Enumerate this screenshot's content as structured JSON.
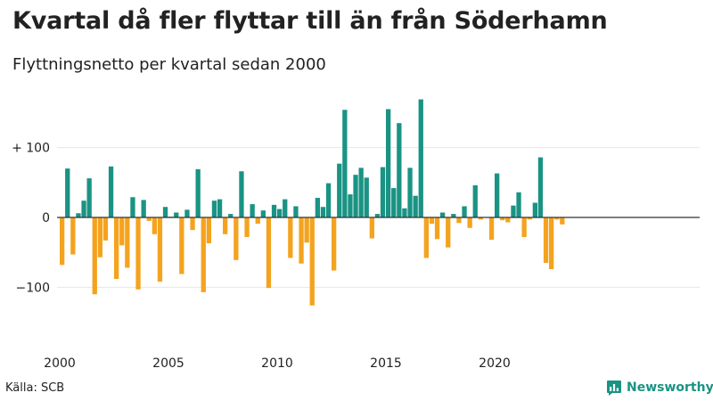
{
  "header": {
    "title": "Kvartal då fler flyttar till än från Söderhamn",
    "subtitle": "Flyttningsnetto per kvartal sedan 2000"
  },
  "footer": {
    "source": "Källa: SCB",
    "brand": "Newsworthy"
  },
  "colors": {
    "positive": "#1a9384",
    "negative": "#f4a31f",
    "grid": "#e6e6e6",
    "zero_line": "#333333"
  },
  "chart_data": {
    "type": "bar",
    "start_quarter": "2000K1",
    "y_ticks": [
      {
        "value": 100,
        "label": "+ 100"
      },
      {
        "value": 0,
        "label": "0"
      },
      {
        "value": -100,
        "label": "−100"
      }
    ],
    "x_ticks": [
      {
        "year": 2000,
        "label": "2000"
      },
      {
        "year": 2005,
        "label": "2005"
      },
      {
        "year": 2010,
        "label": "2010"
      },
      {
        "year": 2015,
        "label": "2015"
      },
      {
        "year": 2020,
        "label": "2020"
      }
    ],
    "ylim": [
      -160,
      180
    ],
    "values": [
      -68,
      70,
      -53,
      6,
      24,
      56,
      -110,
      -57,
      -33,
      73,
      -88,
      -40,
      -72,
      29,
      -103,
      25,
      -5,
      -24,
      -92,
      15,
      1,
      7,
      -81,
      11,
      -18,
      69,
      -107,
      -37,
      24,
      26,
      -24,
      5,
      -61,
      66,
      -28,
      19,
      -9,
      10,
      -101,
      18,
      12,
      26,
      -58,
      16,
      -66,
      -36,
      -126,
      28,
      15,
      49,
      -76,
      77,
      154,
      33,
      61,
      71,
      57,
      -30,
      5,
      72,
      155,
      42,
      135,
      13,
      71,
      31,
      169,
      -58,
      -9,
      -31,
      7,
      -43,
      5,
      -8,
      16,
      -15,
      46,
      -3,
      0,
      -32,
      63,
      -4,
      -7,
      17,
      36,
      -28,
      -3,
      21,
      86,
      -65,
      -74,
      -3,
      -10
    ]
  }
}
